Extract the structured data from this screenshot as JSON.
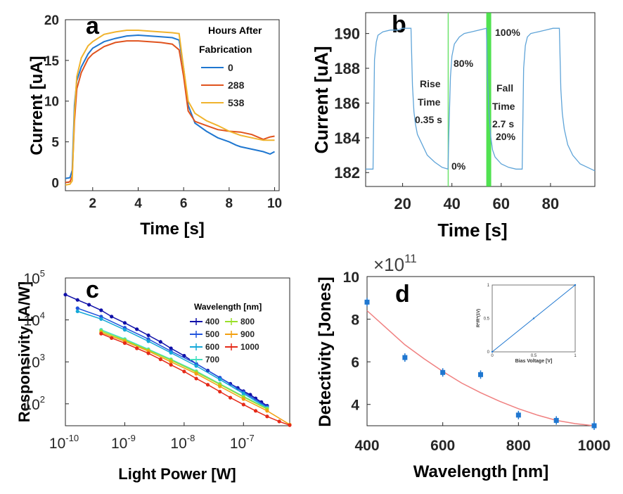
{
  "chart_data": [
    {
      "panel": "a",
      "type": "line",
      "xlabel": "Time [s]",
      "ylabel": "Current [uA]",
      "xlim": [
        0.8,
        10.2
      ],
      "ylim": [
        -1,
        20
      ],
      "xticks": [
        "2",
        "4",
        "6",
        "8",
        "10"
      ],
      "yticks": [
        "0",
        "5",
        "10",
        "15",
        "20"
      ],
      "legend_title": [
        "Hours After",
        "Fabrication"
      ],
      "legend_position": "top-right",
      "series": [
        {
          "name": "0",
          "color": "#1f77d0",
          "x": [
            0.8,
            1.0,
            1.1,
            1.2,
            1.3,
            1.5,
            1.8,
            2.0,
            2.5,
            3.0,
            3.5,
            4.0,
            4.5,
            5.0,
            5.5,
            5.8,
            6.0,
            6.2,
            6.5,
            7.0,
            7.5,
            8.0,
            8.3,
            8.5,
            9.0,
            9.5,
            9.8,
            10.0
          ],
          "y": [
            0.5,
            0.6,
            1.5,
            9.5,
            12.5,
            14.2,
            15.8,
            16.5,
            17.3,
            17.7,
            18.0,
            18.1,
            18.0,
            17.9,
            17.8,
            17.5,
            14.0,
            9.5,
            7.3,
            6.3,
            5.5,
            5.0,
            4.6,
            4.4,
            4.1,
            3.8,
            3.5,
            3.8
          ]
        },
        {
          "name": "288",
          "color": "#e0531e",
          "x": [
            0.8,
            1.0,
            1.1,
            1.2,
            1.3,
            1.5,
            1.8,
            2.0,
            2.5,
            3.0,
            3.5,
            4.0,
            4.5,
            5.0,
            5.5,
            5.8,
            6.0,
            6.2,
            6.5,
            7.0,
            7.5,
            8.0,
            8.5,
            9.0,
            9.5,
            9.8,
            10.0
          ],
          "y": [
            0.0,
            0.1,
            0.8,
            7.5,
            11.5,
            13.5,
            15.2,
            15.8,
            16.7,
            17.2,
            17.4,
            17.4,
            17.3,
            17.2,
            17.0,
            16.3,
            13.0,
            8.8,
            7.5,
            7.0,
            6.5,
            6.3,
            6.2,
            5.9,
            5.3,
            5.6,
            5.7
          ]
        },
        {
          "name": "538",
          "color": "#f0b32d",
          "x": [
            0.8,
            1.0,
            1.1,
            1.2,
            1.3,
            1.5,
            1.8,
            2.0,
            2.5,
            3.0,
            3.5,
            4.0,
            4.5,
            5.0,
            5.5,
            5.8,
            6.0,
            6.2,
            6.5,
            7.0,
            7.5,
            8.0,
            8.5,
            9.0,
            9.5,
            10.0
          ],
          "y": [
            -0.3,
            -0.2,
            0.2,
            8.5,
            13.0,
            15.3,
            16.8,
            17.3,
            18.2,
            18.5,
            18.7,
            18.7,
            18.6,
            18.5,
            18.4,
            18.3,
            14.0,
            10.0,
            8.5,
            7.6,
            7.0,
            6.3,
            5.8,
            5.5,
            5.2,
            5.2
          ]
        }
      ]
    },
    {
      "panel": "b",
      "type": "line",
      "xlabel": "Time [s]",
      "ylabel": "Current [uA]",
      "xlim": [
        5,
        98
      ],
      "ylim": [
        181.2,
        191.2
      ],
      "xticks": [
        "20",
        "40",
        "60",
        "80"
      ],
      "yticks": [
        "182",
        "184",
        "186",
        "188",
        "190"
      ],
      "annotations": [
        "Rise",
        "Time",
        "0.35 s",
        "Fall",
        "Time",
        "2.7 s",
        "100%",
        "80%",
        "20%",
        "0%"
      ],
      "rise_marker_x": 38.5,
      "fall_marker_x": 54.8,
      "series": [
        {
          "name": "",
          "color": "#5fa4d8",
          "x": [
            5,
            8,
            8.6,
            9.3,
            10,
            12,
            15,
            18,
            20,
            23.4,
            24,
            24.6,
            25.2,
            26,
            28,
            30,
            33,
            36,
            38.4,
            38.8,
            39.4,
            40,
            41,
            43,
            45,
            48,
            51,
            54,
            54.4,
            55,
            55.8,
            56.5,
            57.5,
            60,
            63,
            66,
            68.5,
            69.1,
            69.8,
            70.6,
            72,
            75,
            78,
            81,
            83.6,
            84.2,
            84.8,
            85.6,
            87,
            89,
            92,
            95,
            98
          ],
          "y": [
            182.2,
            182.2,
            188.5,
            189.5,
            189.9,
            190.1,
            190.2,
            190.2,
            190.3,
            190.3,
            187.0,
            185.5,
            184.8,
            184.2,
            183.6,
            183.0,
            182.6,
            182.3,
            182.2,
            184.5,
            187.5,
            188.7,
            189.4,
            189.8,
            190.0,
            190.1,
            190.2,
            190.3,
            187.5,
            185.5,
            184.0,
            183.3,
            182.9,
            182.5,
            182.3,
            182.2,
            182.2,
            188.0,
            189.3,
            189.8,
            190.0,
            190.1,
            190.2,
            190.3,
            190.3,
            186.8,
            185.4,
            184.5,
            183.6,
            183.0,
            182.5,
            182.3,
            182.1
          ]
        }
      ]
    },
    {
      "panel": "c",
      "type": "line",
      "xlabel": "Light Power [W]",
      "ylabel": "Responsivity [A/W]",
      "xscale": "log",
      "yscale": "log",
      "xlim": [
        1e-10,
        6e-07
      ],
      "ylim": [
        30,
        100000
      ],
      "xticks": [
        "10",
        "10",
        "10",
        "10"
      ],
      "xtick_exponents": [
        "-10",
        "-9",
        "-8",
        "-7"
      ],
      "yticks": [
        "10",
        "10",
        "10",
        "10"
      ],
      "ytick_exponents": [
        "2",
        "3",
        "4",
        "5"
      ],
      "legend_title": "Wavelength [nm]",
      "legend_position": "top-right",
      "series": [
        {
          "name": "400",
          "color": "#1010a8",
          "x": [
            1e-10,
            1.6e-10,
            2.5e-10,
            4e-10,
            6e-10,
            1e-09,
            1.6e-09,
            2.5e-09,
            4e-09,
            6e-09,
            1e-08,
            1.6e-08,
            2.5e-08,
            4e-08,
            6e-08,
            8e-08,
            1e-07,
            1.3e-07,
            1.6e-07,
            2e-07,
            2.5e-07
          ],
          "y": [
            40000,
            30000,
            23000,
            17000,
            12000,
            8500,
            6000,
            4300,
            3000,
            2100,
            1400,
            900,
            620,
            420,
            300,
            240,
            200,
            165,
            135,
            110,
            90
          ]
        },
        {
          "name": "500",
          "color": "#2255dd",
          "x": [
            1.6e-10,
            4e-10,
            1e-09,
            2.5e-09,
            6e-09,
            1.6e-08,
            4e-08,
            1e-07,
            2.5e-07
          ],
          "y": [
            19000,
            12000,
            6500,
            3500,
            1800,
            900,
            420,
            190,
            85
          ]
        },
        {
          "name": "600",
          "color": "#14a8d8",
          "x": [
            1.6e-10,
            4e-10,
            1e-09,
            2.5e-09,
            6e-09,
            1.6e-08,
            4e-08,
            1e-07,
            2.5e-07
          ],
          "y": [
            16000,
            10500,
            5800,
            3100,
            1650,
            800,
            380,
            175,
            80
          ]
        },
        {
          "name": "700",
          "color": "#44e0c0",
          "x": [
            4e-10,
            1e-09,
            2.5e-09,
            6e-09,
            1.6e-08,
            4e-08,
            1e-07,
            2.5e-07
          ],
          "y": [
            5800,
            3500,
            2000,
            1150,
            600,
            300,
            150,
            78
          ]
        },
        {
          "name": "800",
          "color": "#9ae02a",
          "x": [
            4e-10,
            1e-09,
            2.5e-09,
            6e-09,
            1.6e-08,
            4e-08,
            1e-07,
            2.5e-07
          ],
          "y": [
            5400,
            3300,
            1900,
            1100,
            570,
            290,
            145,
            75
          ]
        },
        {
          "name": "900",
          "color": "#f2a011",
          "x": [
            4e-10,
            1e-09,
            2.5e-09,
            6e-09,
            1.6e-08,
            4e-08,
            1e-07,
            2.5e-07,
            6e-07
          ],
          "y": [
            5000,
            3100,
            1800,
            1000,
            520,
            260,
            130,
            68,
            32
          ]
        },
        {
          "name": "1000",
          "color": "#e52a18",
          "x": [
            4e-10,
            6e-10,
            1e-09,
            1.6e-09,
            2.5e-09,
            4e-09,
            6e-09,
            1e-08,
            1.6e-08,
            2.5e-08,
            4e-08,
            6e-08,
            1e-07,
            1.6e-07,
            2.5e-07,
            4e-07,
            6e-07
          ],
          "y": [
            4700,
            3700,
            2800,
            2100,
            1600,
            1150,
            850,
            590,
            400,
            285,
            195,
            140,
            96,
            68,
            50,
            38,
            31
          ]
        }
      ]
    },
    {
      "panel": "d",
      "type": "scatter",
      "xlabel": "Wavelength [nm]",
      "ylabel": "Detectivity [Jones]",
      "y_multiplier": "×10",
      "y_multiplier_exponent": "11",
      "xlim": [
        400,
        1000
      ],
      "ylim": [
        3,
        10
      ],
      "xticks": [
        "400",
        "600",
        "800",
        "1000"
      ],
      "yticks": [
        "4",
        "6",
        "8",
        "10"
      ],
      "points": {
        "x": [
          400,
          500,
          600,
          700,
          800,
          900,
          1000
        ],
        "y": [
          8.8,
          6.2,
          5.5,
          5.4,
          3.5,
          3.25,
          3.0
        ],
        "color": "#1f77d0"
      },
      "fit": {
        "x": [
          400,
          450,
          500,
          550,
          600,
          650,
          700,
          750,
          800,
          850,
          900,
          950,
          1000
        ],
        "y": [
          8.4,
          7.6,
          6.8,
          6.15,
          5.55,
          5.0,
          4.55,
          4.15,
          3.8,
          3.5,
          3.25,
          3.1,
          3.0
        ],
        "color": "#f08080"
      },
      "inset": {
        "xlabel": "Bias Voltage [V]",
        "ylabel": "R*/R*(1V)",
        "xlim": [
          0,
          1
        ],
        "ylim": [
          0,
          1
        ],
        "xticks": [
          "0",
          "0.5",
          "1"
        ],
        "yticks": [
          "0",
          "0.5",
          "1"
        ],
        "x": [
          0,
          0.5,
          1
        ],
        "y": [
          0,
          0.5,
          1
        ],
        "color": "#1f77d0"
      }
    }
  ],
  "panel_labels": [
    "a",
    "b",
    "c",
    "d"
  ]
}
